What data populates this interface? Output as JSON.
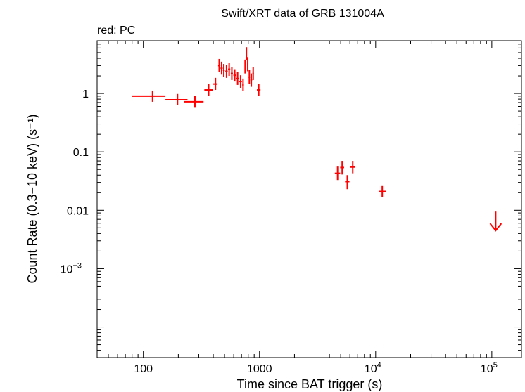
{
  "chart_data": {
    "type": "scatter",
    "title": "Swift/XRT data of GRB 131004A",
    "subtitle": "red: PC",
    "xlabel": "Time since BAT trigger (s)",
    "ylabel": "Count Rate (0.3−10 keV) (s⁻¹)",
    "xscale": "log",
    "yscale": "log",
    "xlim": [
      40,
      180000
    ],
    "ylim": [
      3e-05,
      8
    ],
    "grid": false,
    "color": "#ff0000",
    "xticks": [
      {
        "value": 100,
        "base": "100",
        "exp": ""
      },
      {
        "value": 1000,
        "base": "1000",
        "exp": ""
      },
      {
        "value": 10000,
        "base": "10",
        "exp": "4"
      },
      {
        "value": 100000,
        "base": "10",
        "exp": "5"
      }
    ],
    "yticks": [
      {
        "value": 1,
        "base": "1",
        "exp": ""
      },
      {
        "value": 0.1,
        "base": "0.1",
        "exp": ""
      },
      {
        "value": 0.01,
        "base": "0.01",
        "exp": ""
      },
      {
        "value": 0.001,
        "base": "10",
        "exp": "−3"
      }
    ],
    "points": [
      {
        "x": 120,
        "xlo": 80,
        "xhi": 155,
        "y": 0.9,
        "ylo": 0.72,
        "yhi": 1.12
      },
      {
        "x": 197,
        "xlo": 155,
        "xhi": 240,
        "y": 0.78,
        "ylo": 0.63,
        "yhi": 0.98
      },
      {
        "x": 278,
        "xlo": 225,
        "xhi": 330,
        "y": 0.72,
        "ylo": 0.57,
        "yhi": 0.9
      },
      {
        "x": 365,
        "xlo": 335,
        "xhi": 395,
        "y": 1.15,
        "ylo": 0.9,
        "yhi": 1.45
      },
      {
        "x": 418,
        "xlo": 400,
        "xhi": 435,
        "y": 1.45,
        "ylo": 1.15,
        "yhi": 1.85
      },
      {
        "x": 450,
        "xlo": 440,
        "xhi": 460,
        "y": 3.0,
        "ylo": 2.3,
        "yhi": 3.9
      },
      {
        "x": 472,
        "xlo": 462,
        "xhi": 482,
        "y": 2.7,
        "ylo": 2.1,
        "yhi": 3.5
      },
      {
        "x": 493,
        "xlo": 484,
        "xhi": 502,
        "y": 2.5,
        "ylo": 1.9,
        "yhi": 3.2
      },
      {
        "x": 520,
        "xlo": 508,
        "xhi": 532,
        "y": 2.4,
        "ylo": 1.85,
        "yhi": 3.1
      },
      {
        "x": 548,
        "xlo": 536,
        "xhi": 560,
        "y": 2.6,
        "ylo": 2.0,
        "yhi": 3.3
      },
      {
        "x": 578,
        "xlo": 566,
        "xhi": 590,
        "y": 2.2,
        "ylo": 1.7,
        "yhi": 2.8
      },
      {
        "x": 612,
        "xlo": 596,
        "xhi": 628,
        "y": 2.05,
        "ylo": 1.6,
        "yhi": 2.6
      },
      {
        "x": 648,
        "xlo": 632,
        "xhi": 664,
        "y": 1.8,
        "ylo": 1.4,
        "yhi": 2.3
      },
      {
        "x": 688,
        "xlo": 670,
        "xhi": 706,
        "y": 1.6,
        "ylo": 1.25,
        "yhi": 2.05
      },
      {
        "x": 722,
        "xlo": 710,
        "xhi": 734,
        "y": 1.4,
        "ylo": 1.1,
        "yhi": 1.8
      },
      {
        "x": 752,
        "xlo": 744,
        "xhi": 760,
        "y": 2.9,
        "ylo": 2.2,
        "yhi": 3.8
      },
      {
        "x": 772,
        "xlo": 765,
        "xhi": 779,
        "y": 4.8,
        "ylo": 3.7,
        "yhi": 6.2
      },
      {
        "x": 792,
        "xlo": 784,
        "xhi": 800,
        "y": 3.2,
        "ylo": 2.4,
        "yhi": 4.2
      },
      {
        "x": 818,
        "xlo": 806,
        "xhi": 830,
        "y": 1.9,
        "ylo": 1.45,
        "yhi": 2.5
      },
      {
        "x": 850,
        "xlo": 836,
        "xhi": 864,
        "y": 1.7,
        "ylo": 1.3,
        "yhi": 2.2
      },
      {
        "x": 882,
        "xlo": 870,
        "xhi": 894,
        "y": 2.2,
        "ylo": 1.7,
        "yhi": 2.8
      },
      {
        "x": 985,
        "xlo": 950,
        "xhi": 1020,
        "y": 1.15,
        "ylo": 0.9,
        "yhi": 1.45
      },
      {
        "x": 4700,
        "xlo": 4450,
        "xhi": 4950,
        "y": 0.043,
        "ylo": 0.033,
        "yhi": 0.056
      },
      {
        "x": 5150,
        "xlo": 4950,
        "xhi": 5350,
        "y": 0.054,
        "ylo": 0.041,
        "yhi": 0.07
      },
      {
        "x": 5700,
        "xlo": 5450,
        "xhi": 5950,
        "y": 0.031,
        "ylo": 0.023,
        "yhi": 0.04
      },
      {
        "x": 6350,
        "xlo": 6050,
        "xhi": 6650,
        "y": 0.055,
        "ylo": 0.043,
        "yhi": 0.07
      },
      {
        "x": 11400,
        "xlo": 10600,
        "xhi": 12200,
        "y": 0.021,
        "ylo": 0.017,
        "yhi": 0.026
      }
    ],
    "upper_limits": [
      {
        "x": 108000,
        "y": 0.0095,
        "arrow_to": 0.0045
      }
    ]
  }
}
